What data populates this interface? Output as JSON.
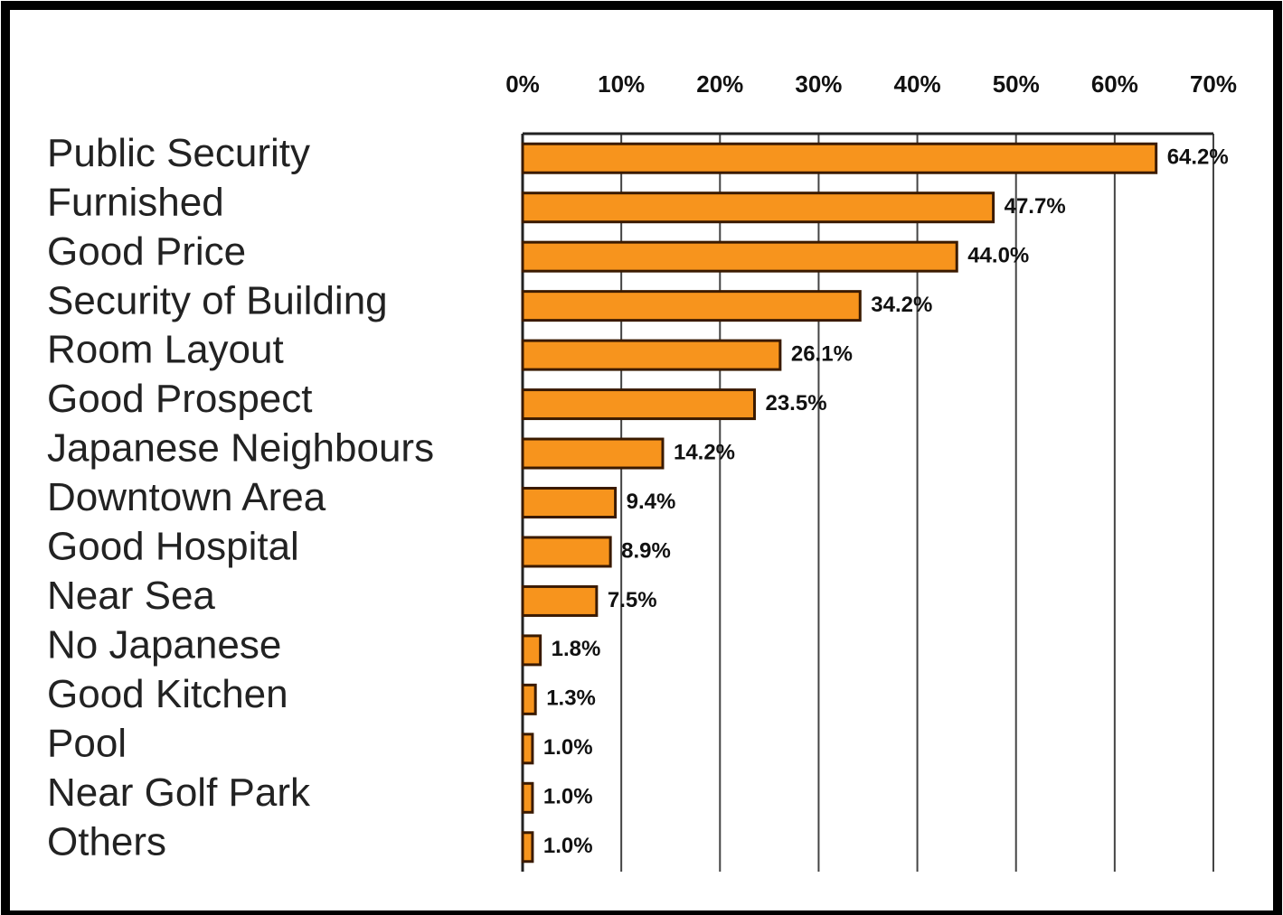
{
  "chart_data": {
    "type": "bar",
    "orientation": "horizontal",
    "categories": [
      "Public Security",
      "Furnished",
      "Good Price",
      "Security of Building",
      "Room Layout",
      "Good Prospect",
      "Japanese Neighbours",
      "Downtown Area",
      "Good Hospital",
      "Near Sea",
      "No Japanese",
      "Good Kitchen",
      "Pool",
      "Near Golf Park",
      "Others"
    ],
    "values": [
      64.2,
      47.7,
      44.0,
      34.2,
      26.1,
      23.5,
      14.2,
      9.4,
      8.9,
      7.5,
      1.8,
      1.3,
      1.0,
      1.0,
      1.0
    ],
    "value_labels": [
      "64.2%",
      "47.7%",
      "44.0%",
      "34.2%",
      "26.1%",
      "23.5%",
      "14.2%",
      "9.4%",
      "8.9%",
      "7.5%",
      "1.8%",
      "1.3%",
      "1.0%",
      "1.0%",
      "1.0%"
    ],
    "color": "#f7941d",
    "xlim": [
      0,
      70
    ],
    "xticks": [
      {
        "value": 0,
        "label": "0%"
      },
      {
        "value": 10,
        "label": "10%"
      },
      {
        "value": 20,
        "label": "20%"
      },
      {
        "value": 30,
        "label": "30%"
      },
      {
        "value": 40,
        "label": "40%"
      },
      {
        "value": 50,
        "label": "50%"
      },
      {
        "value": 60,
        "label": "60%"
      },
      {
        "value": 70,
        "label": "70%"
      }
    ],
    "grid": true
  }
}
